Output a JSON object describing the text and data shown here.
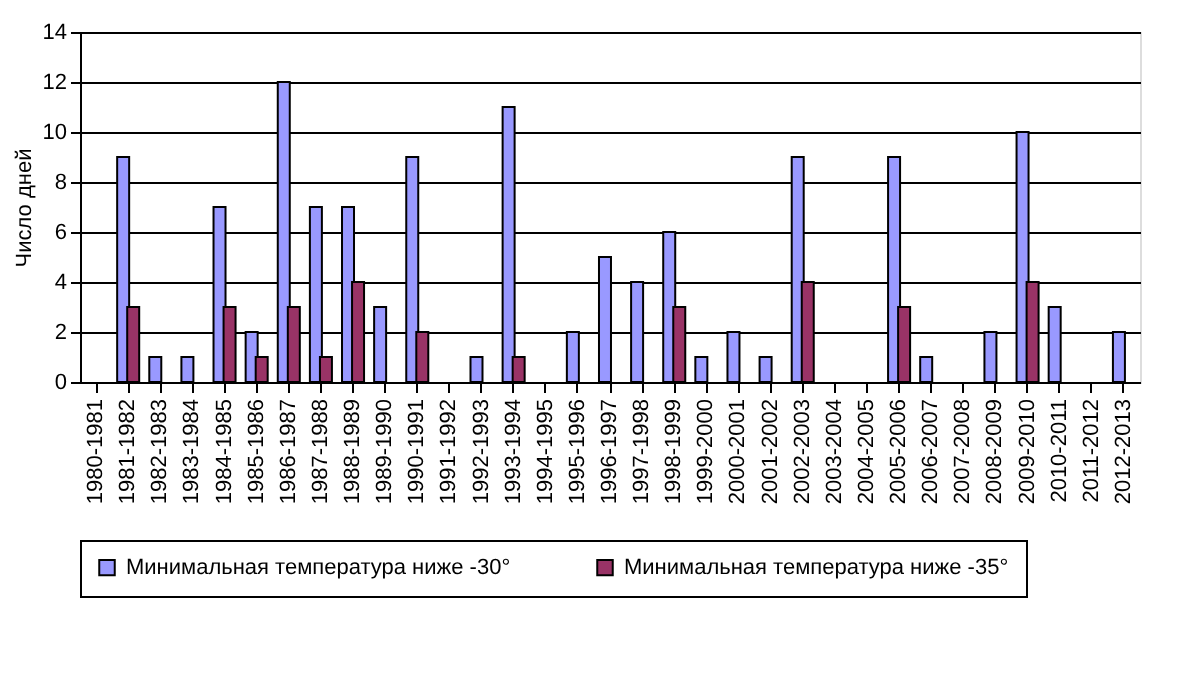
{
  "chart_data": {
    "type": "bar",
    "ylabel": "Число дней",
    "categories": [
      "1980-1981",
      "1981-1982",
      "1982-1983",
      "1983-1984",
      "1984-1985",
      "1985-1986",
      "1986-1987",
      "1987-1988",
      "1988-1989",
      "1989-1990",
      "1990-1991",
      "1991-1992",
      "1992-1993",
      "1993-1994",
      "1994-1995",
      "1995-1996",
      "1996-1997",
      "1997-1998",
      "1998-1999",
      "1999-2000",
      "2000-2001",
      "2001-2002",
      "2002-2003",
      "2003-2004",
      "2004-2005",
      "2005-2006",
      "2006-2007",
      "2007-2008",
      "2008-2009",
      "2009-2010",
      "2010-2011",
      "2011-2012",
      "2012-2013"
    ],
    "series": [
      {
        "name": "Минимальная температура ниже -30°",
        "color": "#9999ff",
        "values": [
          0,
          9,
          1,
          1,
          7,
          2,
          12,
          7,
          7,
          3,
          9,
          0,
          1,
          11,
          0,
          2,
          5,
          4,
          6,
          1,
          2,
          1,
          9,
          0,
          0,
          9,
          1,
          0,
          2,
          10,
          3,
          0,
          2
        ]
      },
      {
        "name": "Минимальная температура ниже -35°",
        "color": "#993366",
        "values": [
          0,
          3,
          0,
          0,
          3,
          1,
          3,
          1,
          4,
          0,
          2,
          0,
          0,
          1,
          0,
          0,
          0,
          0,
          3,
          0,
          0,
          0,
          4,
          0,
          0,
          3,
          0,
          0,
          0,
          4,
          0,
          0,
          0
        ]
      }
    ],
    "ylim": [
      0,
      14
    ],
    "yticks": [
      0,
      2,
      4,
      6,
      8,
      10,
      12,
      14
    ],
    "grid": "y",
    "legend": "bottom"
  }
}
